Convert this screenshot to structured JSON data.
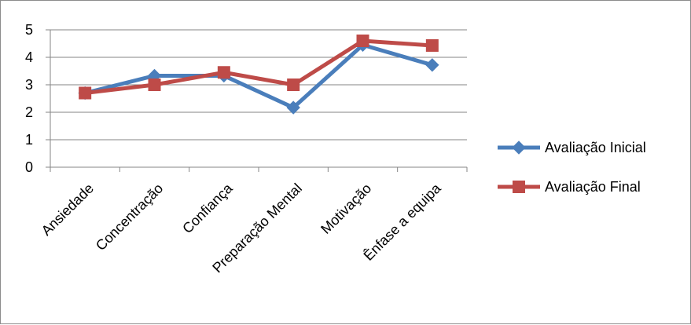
{
  "chart_data": {
    "type": "line",
    "title": "",
    "xlabel": "",
    "ylabel": "",
    "categories": [
      "Ansiedade",
      "Concentração",
      "Confiança",
      "Preparação Mental",
      "Motivação",
      "Ênfase a equipa"
    ],
    "series": [
      {
        "name": "Avaliação Inicial",
        "values": [
          2.7,
          3.33,
          3.33,
          2.17,
          4.45,
          3.72
        ],
        "color": "#4a7ebb",
        "marker": "diamond"
      },
      {
        "name": "Avaliação Final",
        "values": [
          2.7,
          3.0,
          3.45,
          3.0,
          4.6,
          4.43
        ],
        "color": "#be4b48",
        "marker": "square"
      }
    ],
    "ylim": [
      0,
      5
    ],
    "yticks": [
      0,
      1,
      2,
      3,
      4,
      5
    ],
    "grid": true,
    "legend_position": "right"
  }
}
